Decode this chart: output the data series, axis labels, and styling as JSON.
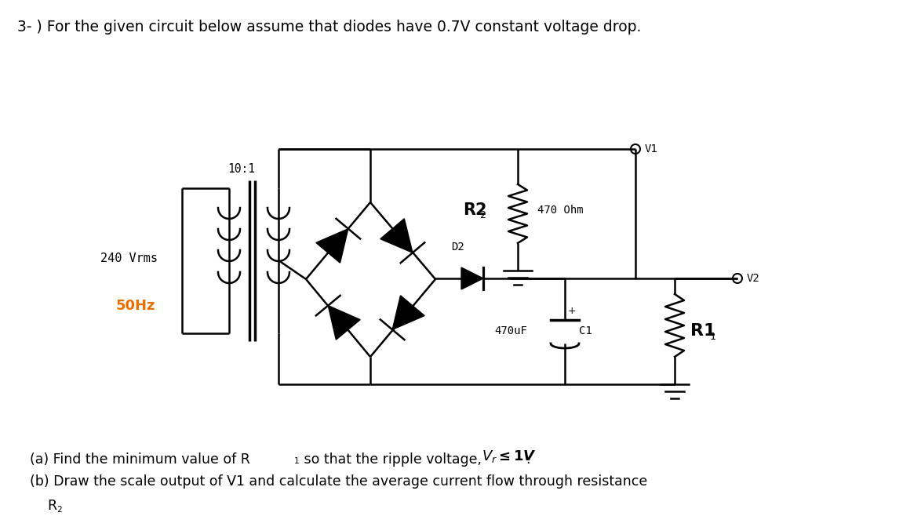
{
  "title": "3- ) For the given circuit below assume that diodes have 0.7V constant voltage drop.",
  "bg_color": "#ffffff",
  "text_color": "#000000",
  "label_10_1": "10:1",
  "label_240": "240 Vrms",
  "label_50hz": "50Hz",
  "label_R2": "R2",
  "label_R2_val": "470 Ohm",
  "label_D2": "D2",
  "label_470uF": "470uF",
  "label_C1": "C1",
  "label_R1": "R1",
  "label_V1": "V1",
  "label_V2": "V2",
  "color_50hz": "#e87000"
}
